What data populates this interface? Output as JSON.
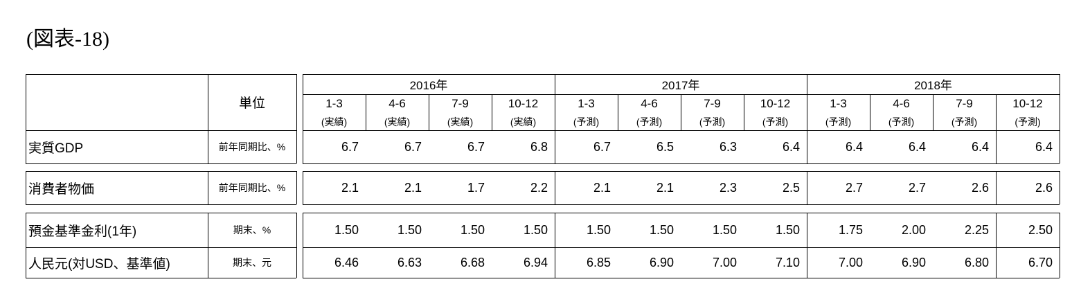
{
  "title": "(図表-18)",
  "unit_header": "単位",
  "years": [
    {
      "label": "2016年"
    },
    {
      "label": "2017年"
    },
    {
      "label": "2018年"
    }
  ],
  "quarters": [
    "1-3",
    "4-6",
    "7-9",
    "10-12",
    "1-3",
    "4-6",
    "7-9",
    "10-12",
    "1-3",
    "4-6",
    "7-9",
    "10-12"
  ],
  "notes": [
    "(実績)",
    "(実績)",
    "(実績)",
    "(実績)",
    "(予測)",
    "(予測)",
    "(予測)",
    "(予測)",
    "(予測)",
    "(予測)",
    "(予測)",
    "(予測)"
  ],
  "rows": [
    {
      "label": "実質GDP",
      "unit": "前年同期比、%",
      "values": [
        "6.7",
        "6.7",
        "6.7",
        "6.8",
        "6.7",
        "6.5",
        "6.3",
        "6.4",
        "6.4",
        "6.4",
        "6.4",
        "6.4"
      ]
    },
    {
      "label": "消費者物価",
      "unit": "前年同期比、%",
      "values": [
        "2.1",
        "2.1",
        "1.7",
        "2.2",
        "2.1",
        "2.1",
        "2.3",
        "2.5",
        "2.7",
        "2.7",
        "2.6",
        "2.6"
      ]
    },
    {
      "label": "預金基準金利(1年)",
      "unit": "期末、%",
      "values": [
        "1.50",
        "1.50",
        "1.50",
        "1.50",
        "1.50",
        "1.50",
        "1.50",
        "1.50",
        "1.75",
        "2.00",
        "2.25",
        "2.50"
      ]
    },
    {
      "label": "人民元(対USD、基準値)",
      "unit": "期末、元",
      "values": [
        "6.46",
        "6.63",
        "6.68",
        "6.94",
        "6.85",
        "6.90",
        "7.00",
        "7.10",
        "7.00",
        "6.90",
        "6.80",
        "6.70"
      ]
    }
  ]
}
